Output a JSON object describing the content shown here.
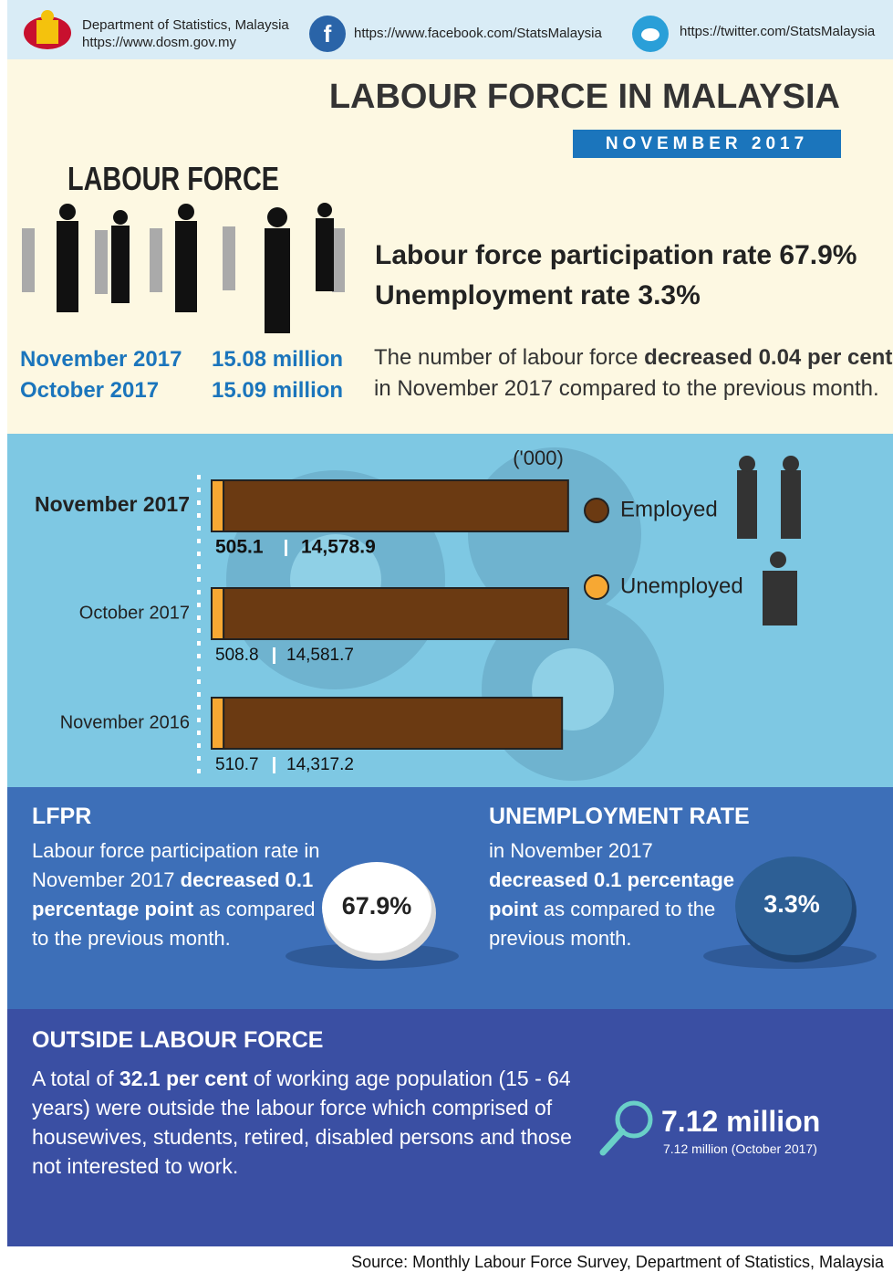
{
  "header": {
    "org": "Department of Statistics, Malaysia",
    "website": "https://www.dosm.gov.my",
    "facebook": "https://www.facebook.com/StatsMalaysia",
    "twitter": "https://twitter.com/StatsMalaysia"
  },
  "title": "LABOUR FORCE IN MALAYSIA",
  "date": "NOVEMBER 2017",
  "illustration_label": "LABOUR FORCE",
  "headline": {
    "lfpr": "Labour force participation rate 67.9%",
    "unemployment": "Unemployment rate 3.3%"
  },
  "labour_force": {
    "rows": [
      [
        "November 2017",
        "15.08 million"
      ],
      [
        "October 2017",
        "15.09 million"
      ]
    ],
    "note": {
      "text_1": "The number of labour force ",
      "bold": "decreased 0.04 per cent",
      "text_2": " in November 2017 compared to the previous month."
    }
  },
  "chart_data": {
    "type": "bar",
    "orientation": "horizontal",
    "stacked": true,
    "unit": "('000)",
    "categories": [
      "November 2017",
      "October 2017",
      "November 2016"
    ],
    "series": [
      {
        "name": "Unemployed",
        "color": "#f7a833",
        "values": [
          505.1,
          508.8,
          510.7
        ]
      },
      {
        "name": "Employed",
        "color": "#6b3a12",
        "values": [
          14578.9,
          14581.7,
          14317.2
        ],
        "value_labels": [
          "14,578.9",
          "14,581.7",
          "14,317.2"
        ]
      }
    ]
  },
  "lfpr": {
    "heading": "LFPR",
    "text_1": "Labour force participation rate in November 2017 ",
    "bold": "decreased 0.1 percentage point",
    "text_2": " as compared to the previous month.",
    "value": "67.9%"
  },
  "unemployment": {
    "heading": "UNEMPLOYMENT RATE",
    "text_1": "in November 2017 ",
    "bold": "decreased 0.1 percentage point",
    "text_2": " as compared to the previous month.",
    "value": "3.3%"
  },
  "outside": {
    "heading": "OUTSIDE LABOUR FORCE",
    "text_1": "A total of ",
    "bold": "32.1 per cent",
    "text_2": " of working age population (15 - 64 years) were outside the labour force which comprised of housewives, students, retired, disabled persons and those not interested to work.",
    "value": "7.12 million",
    "note": "7.12 million (October 2017)"
  },
  "source": "Source: Monthly Labour Force Survey, Department of Statistics, Malaysia"
}
